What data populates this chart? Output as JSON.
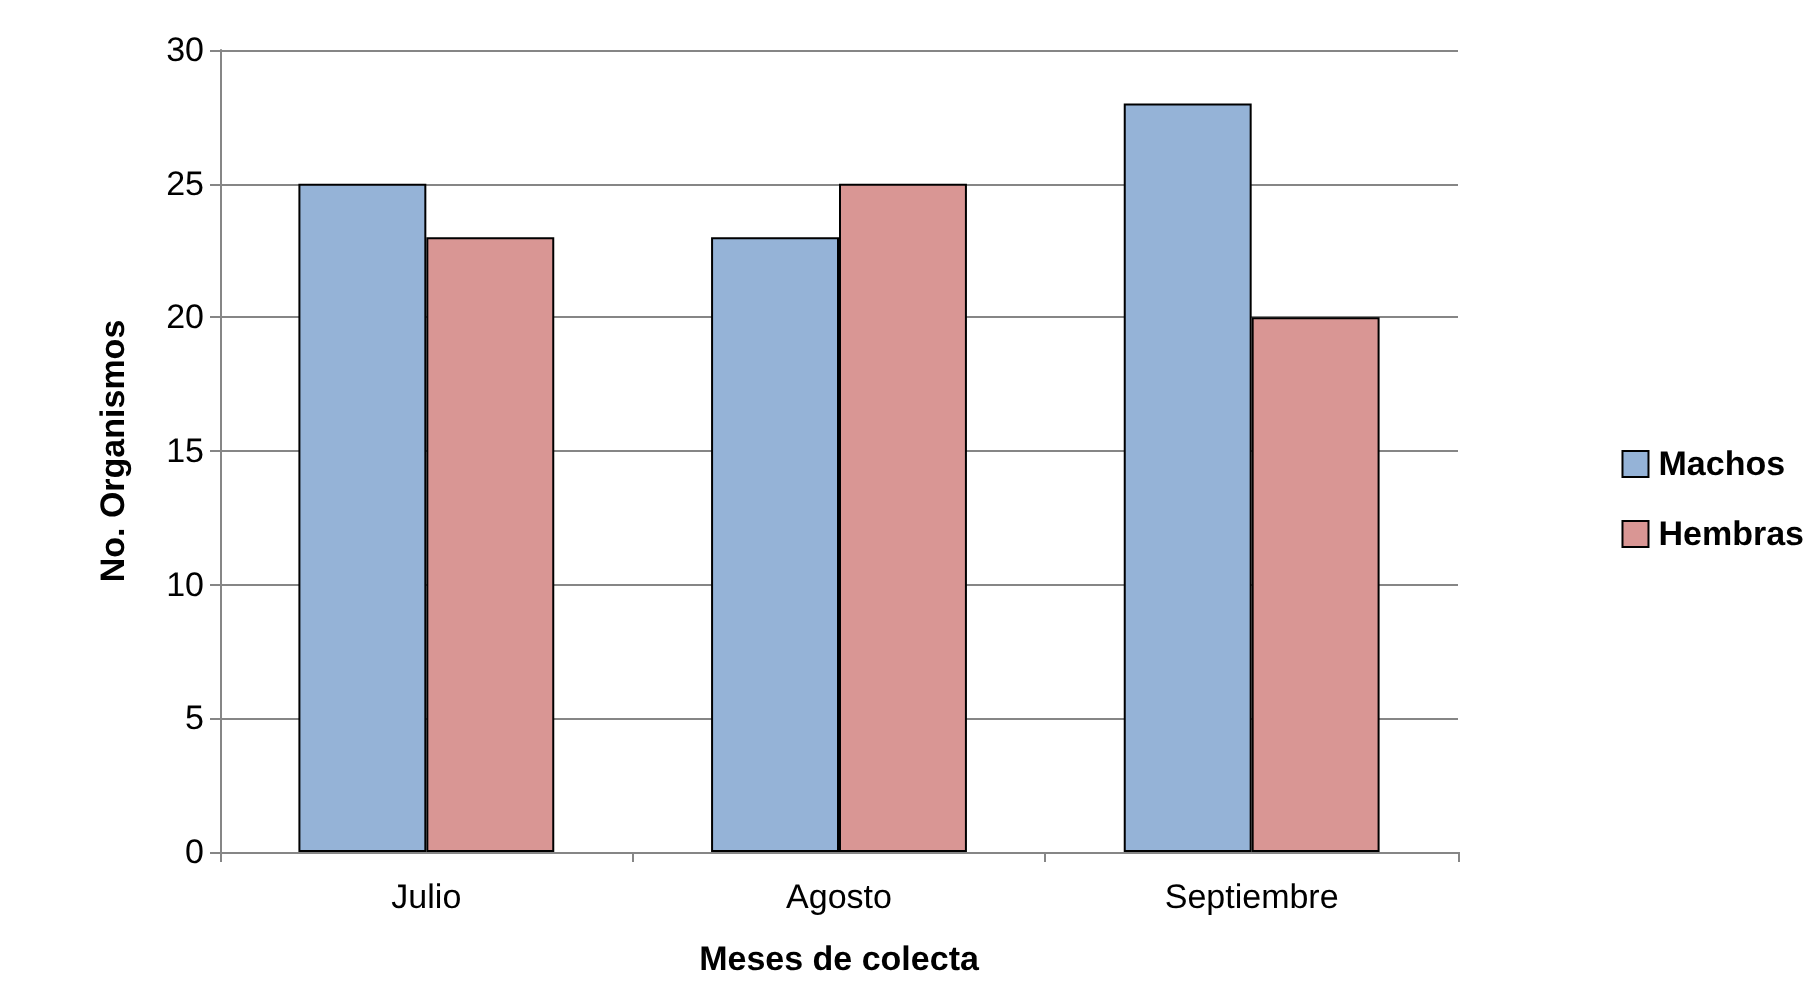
{
  "chart_data": {
    "type": "bar",
    "xlabel": "Meses de colecta",
    "ylabel": "No. Organismos",
    "categories": [
      "Julio",
      "Agosto",
      "Septiembre"
    ],
    "series": [
      {
        "name": "Machos",
        "color": "#95b3d7",
        "values": [
          25,
          23,
          28
        ]
      },
      {
        "name": "Hembras",
        "color": "#d99694",
        "values": [
          23,
          25,
          20
        ]
      }
    ],
    "ylim": [
      0,
      30
    ],
    "yticks": [
      0,
      5,
      10,
      15,
      20,
      25,
      30
    ],
    "grid": "y",
    "legend": "right"
  }
}
